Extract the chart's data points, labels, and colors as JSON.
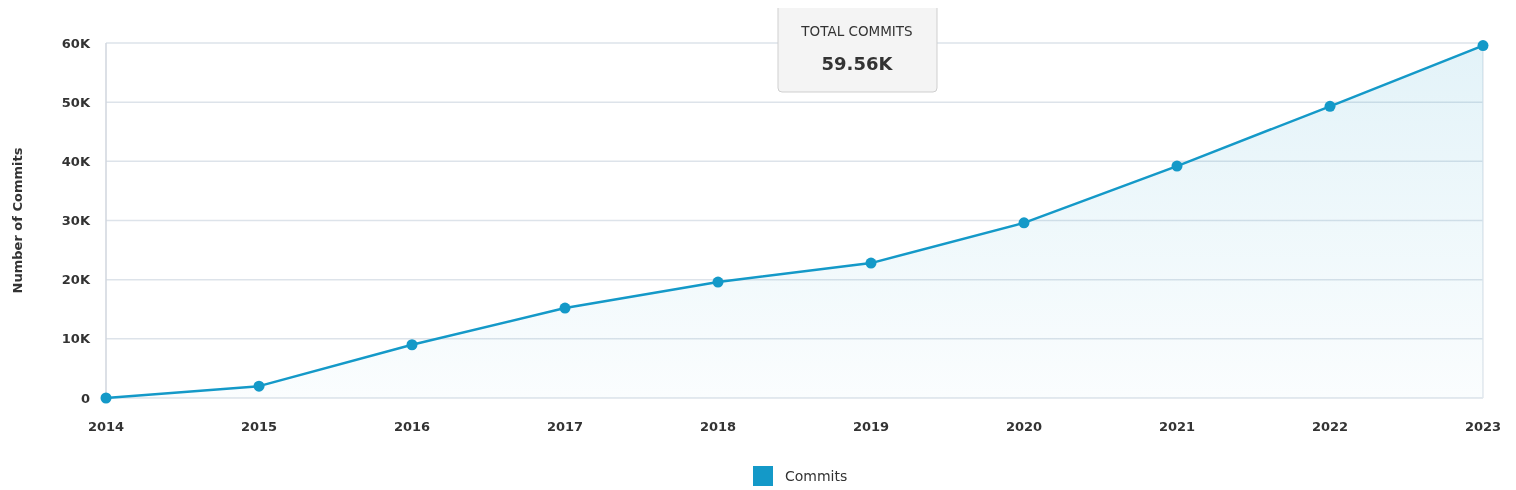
{
  "chart_data": {
    "type": "area",
    "ylabel": "Number of Commits",
    "x": [
      2014,
      2015,
      2016,
      2017,
      2018,
      2019,
      2020,
      2021,
      2022,
      2023
    ],
    "series": [
      {
        "name": "Commits",
        "color": "#1499c8",
        "values": [
          0,
          2000,
          9000,
          15200,
          19600,
          22800,
          29600,
          39200,
          49300,
          59560
        ]
      }
    ],
    "xlim": [
      2014,
      2023
    ],
    "xticks": [
      2014,
      2015,
      2016,
      2017,
      2018,
      2019,
      2020,
      2021,
      2022,
      2023
    ],
    "ylim": [
      0,
      60000
    ],
    "yticks": [
      {
        "value": 0,
        "label": "0"
      },
      {
        "value": 10000,
        "label": "10K"
      },
      {
        "value": 20000,
        "label": "20K"
      },
      {
        "value": 30000,
        "label": "30K"
      },
      {
        "value": 40000,
        "label": "40K"
      },
      {
        "value": 50000,
        "label": "50K"
      },
      {
        "value": 60000,
        "label": "60K"
      }
    ],
    "grid": "y",
    "legend": "bottom",
    "marker": "circle",
    "line_style": "solid",
    "annotations": [
      "TOTAL COMMITS",
      "59.56K"
    ]
  }
}
